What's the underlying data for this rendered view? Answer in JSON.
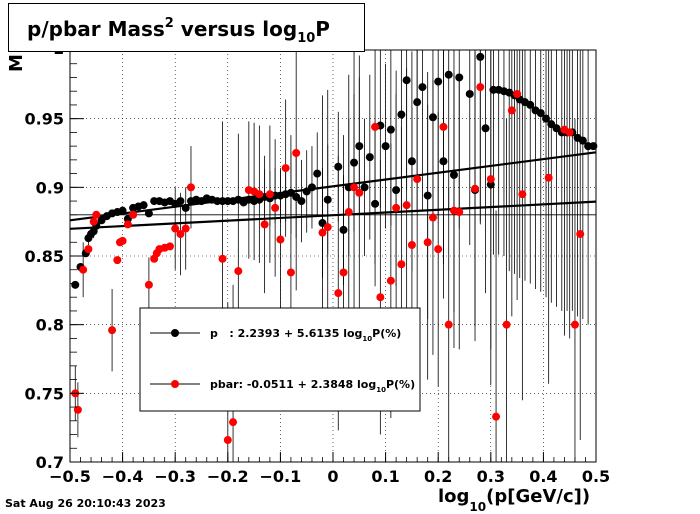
{
  "title": {
    "main": "p/pbar Mass",
    "sup": "2",
    "mid": " versus log",
    "sub": "10",
    "end": "P"
  },
  "timestamp": "Sat Aug 26 20:10:43 2023",
  "xlabel": {
    "pre": "log",
    "sub": "10",
    "post": "(p[GeV/c])"
  },
  "ylabel_fragment": "M",
  "legend": {
    "p": {
      "pre": "p   : 2.2393 + 5.6135 log",
      "sub": "10",
      "post": "P(%)"
    },
    "pbar": {
      "pre": "pbar: -0.0511 + 2.3848 log",
      "sub": "10",
      "post": "P(%)"
    }
  },
  "colors": {
    "p": "#000000",
    "pbar": "#ff0000"
  },
  "chart_data": {
    "type": "scatter",
    "xlim": [
      -0.5,
      0.5
    ],
    "ylim": [
      0.7,
      1.0
    ],
    "xticks": [
      -0.5,
      -0.4,
      -0.3,
      -0.2,
      -0.1,
      0,
      0.1,
      0.2,
      0.3,
      0.4,
      0.5
    ],
    "yticks": [
      0.7,
      0.75,
      0.8,
      0.85,
      0.9,
      0.95
    ],
    "grid": true,
    "reference_line_y": 0.88,
    "series": [
      {
        "name": "p",
        "fit_line": [
          [
            -0.5,
            0.876
          ],
          [
            0.5,
            0.9255
          ]
        ],
        "points": [
          [
            -0.49,
            0.829,
            0
          ],
          [
            -0.48,
            0.842,
            0
          ],
          [
            -0.47,
            0.852,
            0
          ],
          [
            -0.465,
            0.863,
            0.005
          ],
          [
            -0.46,
            0.866,
            0.005
          ],
          [
            -0.455,
            0.868,
            0.005
          ],
          [
            -0.45,
            0.872,
            0
          ],
          [
            -0.44,
            0.876,
            0
          ],
          [
            -0.43,
            0.879,
            0
          ],
          [
            -0.42,
            0.881,
            0
          ],
          [
            -0.41,
            0.882,
            0
          ],
          [
            -0.4,
            0.883,
            0
          ],
          [
            -0.39,
            0.877,
            0
          ],
          [
            -0.38,
            0.885,
            0
          ],
          [
            -0.37,
            0.886,
            0
          ],
          [
            -0.36,
            0.887,
            0
          ],
          [
            -0.35,
            0.881,
            0
          ],
          [
            -0.34,
            0.89,
            0
          ],
          [
            -0.33,
            0.89,
            0
          ],
          [
            -0.32,
            0.889,
            0
          ],
          [
            -0.31,
            0.89,
            0
          ],
          [
            -0.3,
            0.888,
            0
          ],
          [
            -0.29,
            0.89,
            0
          ],
          [
            -0.28,
            0.885,
            0
          ],
          [
            -0.27,
            0.89,
            0
          ],
          [
            -0.26,
            0.891,
            0
          ],
          [
            -0.25,
            0.89,
            0
          ],
          [
            -0.24,
            0.892,
            0
          ],
          [
            -0.23,
            0.891,
            0
          ],
          [
            -0.22,
            0.89,
            0
          ],
          [
            -0.21,
            0.89,
            0
          ],
          [
            -0.2,
            0.89,
            0
          ],
          [
            -0.19,
            0.89,
            0
          ],
          [
            -0.18,
            0.891,
            0
          ],
          [
            -0.17,
            0.889,
            0
          ],
          [
            -0.16,
            0.891,
            0
          ],
          [
            -0.15,
            0.89,
            0
          ],
          [
            -0.14,
            0.891,
            0
          ],
          [
            -0.13,
            0.893,
            0.02
          ],
          [
            -0.12,
            0.892,
            0.02
          ],
          [
            -0.11,
            0.894,
            0.02
          ],
          [
            -0.1,
            0.894,
            0.02
          ],
          [
            -0.09,
            0.895,
            0.02
          ],
          [
            -0.08,
            0.896,
            0.03
          ],
          [
            -0.07,
            0.893,
            0.03
          ],
          [
            -0.06,
            0.89,
            0.03
          ],
          [
            -0.05,
            0.897,
            0.03
          ],
          [
            -0.04,
            0.9,
            0.03
          ],
          [
            -0.03,
            0.91,
            0.03
          ],
          [
            -0.02,
            0.874,
            0.04
          ],
          [
            -0.01,
            0.891,
            0.04
          ],
          [
            0.01,
            0.915,
            0.04
          ],
          [
            0.02,
            0.869,
            0.04
          ],
          [
            0.03,
            0.9,
            0.05
          ],
          [
            0.04,
            0.918,
            0.05
          ],
          [
            0.05,
            0.93,
            0.05
          ],
          [
            0.06,
            0.9,
            0.05
          ],
          [
            0.07,
            0.922,
            0.06
          ],
          [
            0.08,
            0.888,
            0.06
          ],
          [
            0.09,
            0.945,
            0.06
          ],
          [
            0.1,
            0.93,
            0.06
          ],
          [
            0.11,
            0.942,
            0.07
          ],
          [
            0.12,
            0.898,
            0.07
          ],
          [
            0.13,
            0.953,
            0.07
          ],
          [
            0.14,
            0.978,
            0.08
          ],
          [
            0.15,
            0.919,
            0.08
          ],
          [
            0.16,
            0.962,
            0.08
          ],
          [
            0.17,
            0.973,
            0.09
          ],
          [
            0.18,
            0.894,
            0.09
          ],
          [
            0.19,
            0.951,
            0.09
          ],
          [
            0.2,
            0.977,
            0.1
          ],
          [
            0.21,
            0.919,
            0.1
          ],
          [
            0.22,
            0.982,
            0.1
          ],
          [
            0.23,
            0.909,
            0.1
          ],
          [
            0.24,
            0.98,
            0.11
          ],
          [
            0.26,
            0.968,
            0.11
          ],
          [
            0.27,
            0.898,
            0.11
          ],
          [
            0.28,
            0.995,
            0.12
          ],
          [
            0.29,
            0.943,
            0.12
          ],
          [
            0.3,
            0.902,
            0.12
          ],
          [
            0.305,
            0.971,
            0.12
          ],
          [
            0.315,
            0.971,
            0.12
          ],
          [
            0.325,
            0.97,
            0.12
          ],
          [
            0.335,
            0.969,
            0.13
          ],
          [
            0.345,
            0.967,
            0.13
          ],
          [
            0.355,
            0.964,
            0.13
          ],
          [
            0.365,
            0.962,
            0.13
          ],
          [
            0.375,
            0.96,
            0.13
          ],
          [
            0.385,
            0.956,
            0.13
          ],
          [
            0.395,
            0.954,
            0.13
          ],
          [
            0.405,
            0.95,
            0.13
          ],
          [
            0.415,
            0.946,
            0.13
          ],
          [
            0.425,
            0.943,
            0.13
          ],
          [
            0.435,
            0.94,
            0.13
          ],
          [
            0.445,
            0.94,
            0.13
          ],
          [
            0.455,
            0.94,
            0.13
          ],
          [
            0.465,
            0.936,
            0.13
          ],
          [
            0.475,
            0.934,
            0.13
          ],
          [
            0.485,
            0.93,
            0.13
          ],
          [
            0.495,
            0.93,
            0
          ]
        ]
      },
      {
        "name": "pbar",
        "fit_line": [
          [
            -0.5,
            0.8698
          ],
          [
            0.5,
            0.8896
          ]
        ],
        "points": [
          [
            -0.49,
            0.75,
            0.02
          ],
          [
            -0.485,
            0.738,
            0.02
          ],
          [
            -0.475,
            0.84,
            0.02
          ],
          [
            -0.465,
            0.855,
            0
          ],
          [
            -0.455,
            0.875,
            0
          ],
          [
            -0.45,
            0.88,
            0
          ],
          [
            -0.42,
            0.796,
            0.03
          ],
          [
            -0.41,
            0.847,
            0
          ],
          [
            -0.405,
            0.86,
            0
          ],
          [
            -0.4,
            0.861,
            0
          ],
          [
            -0.39,
            0.873,
            0
          ],
          [
            -0.38,
            0.88,
            0
          ],
          [
            -0.35,
            0.829,
            0.02
          ],
          [
            -0.34,
            0.848,
            0
          ],
          [
            -0.335,
            0.852,
            0
          ],
          [
            -0.33,
            0.855,
            0
          ],
          [
            -0.32,
            0.856,
            0
          ],
          [
            -0.31,
            0.857,
            0
          ],
          [
            -0.3,
            0.87,
            0.03
          ],
          [
            -0.29,
            0.866,
            0.03
          ],
          [
            -0.28,
            0.87,
            0.03
          ],
          [
            -0.27,
            0.9,
            0.03
          ],
          [
            -0.21,
            0.848,
            0.1
          ],
          [
            -0.2,
            0.716,
            0.1
          ],
          [
            -0.19,
            0.729,
            0.1
          ],
          [
            -0.18,
            0.839,
            0.1
          ],
          [
            -0.16,
            0.898,
            0.05
          ],
          [
            -0.15,
            0.897,
            0.05
          ],
          [
            -0.14,
            0.895,
            0.05
          ],
          [
            -0.13,
            0.873,
            0.05
          ],
          [
            -0.12,
            0.895,
            0.05
          ],
          [
            -0.11,
            0.885,
            0.05
          ],
          [
            -0.1,
            0.862,
            0.05
          ],
          [
            -0.09,
            0.914,
            0.05
          ],
          [
            -0.08,
            0.838,
            0.1
          ],
          [
            -0.07,
            0.925,
            0.1
          ],
          [
            -0.02,
            0.867,
            0.1
          ],
          [
            -0.01,
            0.871,
            0.1
          ],
          [
            0.01,
            0.823,
            0.1
          ],
          [
            0.02,
            0.838,
            0.1
          ],
          [
            0.03,
            0.882,
            0.1
          ],
          [
            0.04,
            0.9,
            0.1
          ],
          [
            0.05,
            0.896,
            0.1
          ],
          [
            0.08,
            0.944,
            0.1
          ],
          [
            0.09,
            0.82,
            0.1
          ],
          [
            0.11,
            0.832,
            0.1
          ],
          [
            0.12,
            0.885,
            0.1
          ],
          [
            0.13,
            0.844,
            0.1
          ],
          [
            0.14,
            0.887,
            0.1
          ],
          [
            0.15,
            0.858,
            0.1
          ],
          [
            0.16,
            0.906,
            0.1
          ],
          [
            0.18,
            0.86,
            0.1
          ],
          [
            0.19,
            0.878,
            0.1
          ],
          [
            0.2,
            0.855,
            0.1
          ],
          [
            0.21,
            0.944,
            0.1
          ],
          [
            0.22,
            0.8,
            0.1
          ],
          [
            0.23,
            0.883,
            0.1
          ],
          [
            0.24,
            0.882,
            0.1
          ],
          [
            0.27,
            0.899,
            0.1
          ],
          [
            0.28,
            0.973,
            0.1
          ],
          [
            0.3,
            0.906,
            0.15
          ],
          [
            0.31,
            0.733,
            0.15
          ],
          [
            0.33,
            0.8,
            0.15
          ],
          [
            0.34,
            0.956,
            0.15
          ],
          [
            0.35,
            0.968,
            0.15
          ],
          [
            0.36,
            0.895,
            0.15
          ],
          [
            0.41,
            0.907,
            0.15
          ],
          [
            0.44,
            0.942,
            0.15
          ],
          [
            0.45,
            0.94,
            0.15
          ],
          [
            0.46,
            0.8,
            0.15
          ],
          [
            0.47,
            0.866,
            0.15
          ]
        ]
      }
    ]
  }
}
